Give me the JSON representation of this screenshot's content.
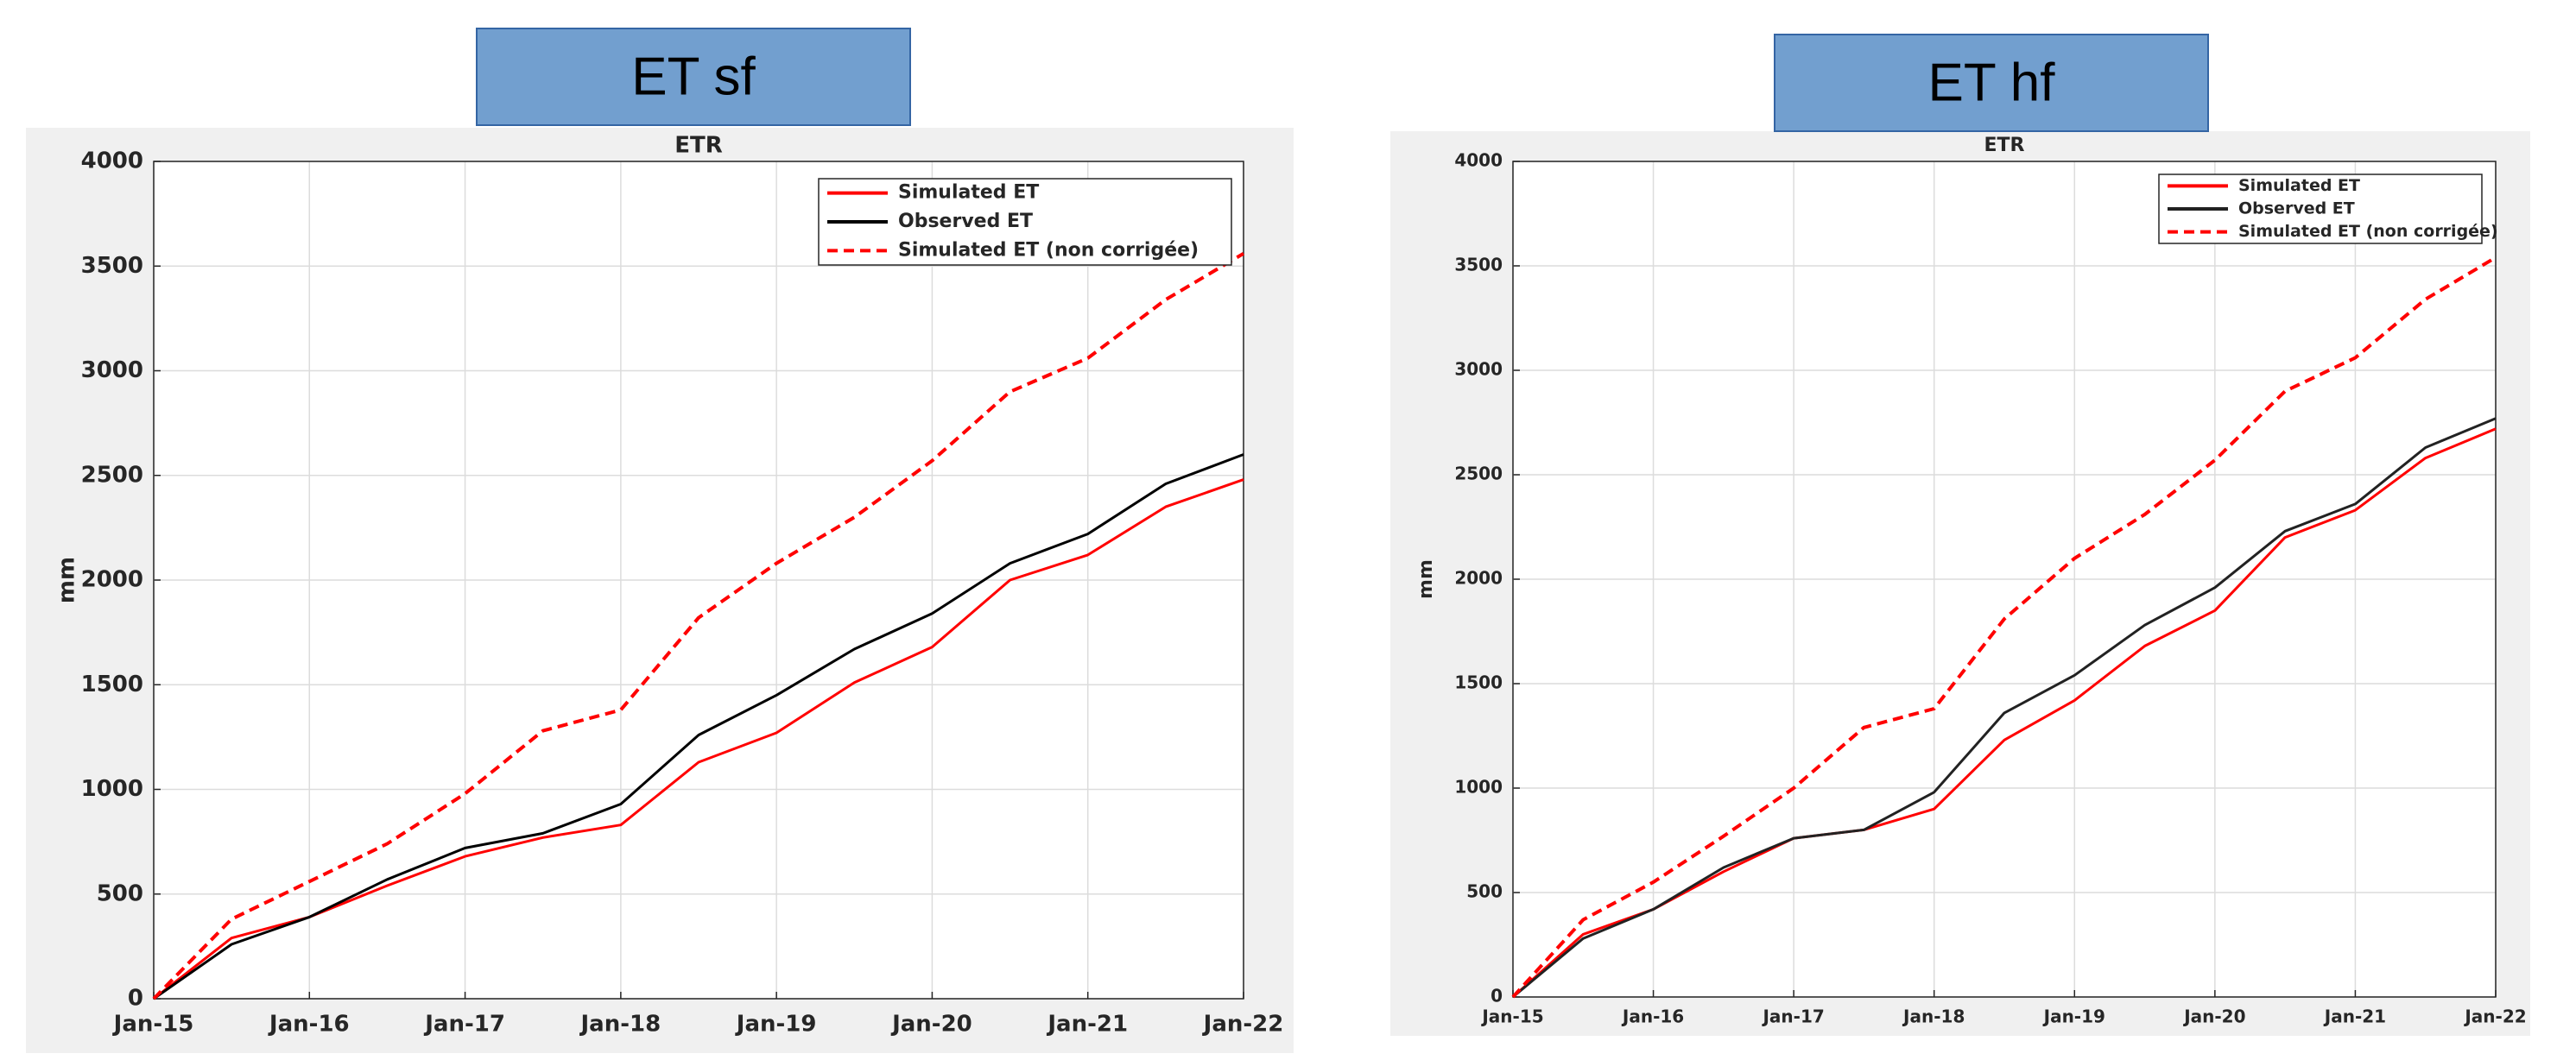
{
  "chart_data": [
    {
      "type": "line",
      "panel_label": "ET sf",
      "title": "ETR",
      "ylabel": "mm",
      "x": [
        2015,
        2015.5,
        2016,
        2016.5,
        2017,
        2017.5,
        2018,
        2018.5,
        2019,
        2019.5,
        2020,
        2020.5,
        2021,
        2021.5,
        2022
      ],
      "xlim": [
        2015,
        2022
      ],
      "xticks": [
        {
          "value": 2015,
          "label": "Jan-15"
        },
        {
          "value": 2016,
          "label": "Jan-16"
        },
        {
          "value": 2017,
          "label": "Jan-17"
        },
        {
          "value": 2018,
          "label": "Jan-18"
        },
        {
          "value": 2019,
          "label": "Jan-19"
        },
        {
          "value": 2020,
          "label": "Jan-20"
        },
        {
          "value": 2021,
          "label": "Jan-21"
        },
        {
          "value": 2022,
          "label": "Jan-22"
        }
      ],
      "ylim": [
        0,
        4000
      ],
      "yticks": [
        0,
        500,
        1000,
        1500,
        2000,
        2500,
        3000,
        3500,
        4000
      ],
      "grid": true,
      "legend": "upper right",
      "series": [
        {
          "name": "Simulated ET",
          "color": "#ff0000",
          "dash": false,
          "values": [
            0,
            290,
            390,
            540,
            680,
            770,
            830,
            1130,
            1270,
            1510,
            1680,
            2000,
            2120,
            2350,
            2480
          ]
        },
        {
          "name": "Observed ET",
          "color": "#000000",
          "dash": false,
          "values": [
            0,
            260,
            390,
            570,
            720,
            790,
            930,
            1260,
            1450,
            1670,
            1840,
            2080,
            2220,
            2460,
            2600
          ]
        },
        {
          "name": "Simulated ET (non corrigée)",
          "color": "#ff0000",
          "dash": true,
          "values": [
            0,
            380,
            560,
            740,
            980,
            1280,
            1380,
            1820,
            2080,
            2300,
            2570,
            2900,
            3060,
            3340,
            3560
          ]
        }
      ]
    },
    {
      "type": "line",
      "panel_label": "ET hf",
      "title": "ETR",
      "ylabel": "mm",
      "x": [
        2015,
        2015.5,
        2016,
        2016.5,
        2017,
        2017.5,
        2018,
        2018.5,
        2019,
        2019.5,
        2020,
        2020.5,
        2021,
        2021.5,
        2022
      ],
      "xlim": [
        2015,
        2022
      ],
      "xticks": [
        {
          "value": 2015,
          "label": "Jan-15"
        },
        {
          "value": 2016,
          "label": "Jan-16"
        },
        {
          "value": 2017,
          "label": "Jan-17"
        },
        {
          "value": 2018,
          "label": "Jan-18"
        },
        {
          "value": 2019,
          "label": "Jan-19"
        },
        {
          "value": 2020,
          "label": "Jan-20"
        },
        {
          "value": 2021,
          "label": "Jan-21"
        },
        {
          "value": 2022,
          "label": "Jan-22"
        }
      ],
      "ylim": [
        0,
        4000
      ],
      "yticks": [
        0,
        500,
        1000,
        1500,
        2000,
        2500,
        3000,
        3500,
        4000
      ],
      "grid": true,
      "legend": "upper right",
      "series": [
        {
          "name": "Simulated ET",
          "color": "#ff0000",
          "dash": false,
          "values": [
            0,
            300,
            420,
            600,
            760,
            800,
            900,
            1230,
            1420,
            1680,
            1850,
            2200,
            2330,
            2580,
            2720
          ]
        },
        {
          "name": "Observed ET",
          "color": "#222222",
          "dash": false,
          "values": [
            0,
            280,
            420,
            620,
            760,
            800,
            980,
            1360,
            1540,
            1780,
            1960,
            2230,
            2360,
            2630,
            2770
          ]
        },
        {
          "name": "Simulated ET (non corrigée)",
          "color": "#ff0000",
          "dash": true,
          "values": [
            0,
            370,
            550,
            770,
            1000,
            1290,
            1380,
            1810,
            2100,
            2310,
            2570,
            2900,
            3060,
            3340,
            3540
          ]
        }
      ]
    }
  ]
}
